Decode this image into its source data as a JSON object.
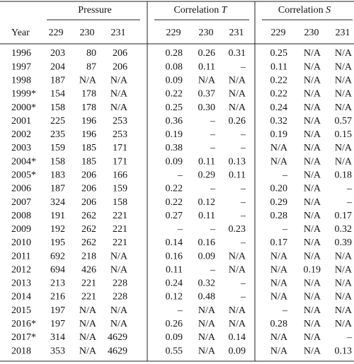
{
  "table": {
    "header": {
      "year": "Year",
      "groups": [
        {
          "label": "Pressure"
        },
        {
          "label": "Correlation",
          "symbol": "T"
        },
        {
          "label": "Correlation",
          "symbol": "S"
        }
      ],
      "columns": [
        "229",
        "230",
        "231",
        "229",
        "230",
        "231",
        "229",
        "230",
        "231"
      ]
    },
    "rows": [
      {
        "year": "1996",
        "cells": [
          "203",
          "80",
          "206",
          "0.28",
          "0.26",
          "0.31",
          "0.25",
          "N/A",
          "N/A"
        ]
      },
      {
        "year": "1997",
        "cells": [
          "204",
          "87",
          "206",
          "0.08",
          "0.11",
          "–",
          "0.11",
          "N/A",
          "N/A"
        ]
      },
      {
        "year": "1998",
        "cells": [
          "187",
          "N/A",
          "N/A",
          "0.09",
          "N/A",
          "N/A",
          "0.22",
          "N/A",
          "N/A"
        ]
      },
      {
        "year": "1999*",
        "cells": [
          "154",
          "178",
          "N/A",
          "0.22",
          "0.37",
          "N/A",
          "0.22",
          "N/A",
          "N/A"
        ]
      },
      {
        "year": "2000*",
        "cells": [
          "158",
          "178",
          "N/A",
          "0.25",
          "0.30",
          "N/A",
          "0.24",
          "N/A",
          "N/A"
        ]
      },
      {
        "year": "2001",
        "cells": [
          "225",
          "196",
          "253",
          "0.36",
          "–",
          "0.26",
          "0.32",
          "N/A",
          "0.57"
        ]
      },
      {
        "year": "2002",
        "cells": [
          "235",
          "196",
          "253",
          "0.19",
          "–",
          "–",
          "0.19",
          "N/A",
          "0.15"
        ]
      },
      {
        "year": "2003",
        "cells": [
          "159",
          "185",
          "171",
          "0.38",
          "–",
          "–",
          "N/A",
          "N/A",
          "N/A"
        ]
      },
      {
        "year": "2004*",
        "cells": [
          "158",
          "185",
          "171",
          "0.09",
          "0.11",
          "0.13",
          "N/A",
          "N/A",
          "N/A"
        ]
      },
      {
        "year": "2005*",
        "cells": [
          "183",
          "206",
          "166",
          "–",
          "0.29",
          "0.11",
          "–",
          "N/A",
          "0.18"
        ]
      },
      {
        "year": "2006",
        "cells": [
          "187",
          "206",
          "159",
          "0.22",
          "–",
          "–",
          "0.20",
          "N/A",
          "–"
        ]
      },
      {
        "year": "2007",
        "cells": [
          "324",
          "206",
          "158",
          "0.22",
          "0.12",
          "–",
          "0.29",
          "N/A",
          "–"
        ]
      },
      {
        "year": "2008",
        "cells": [
          "191",
          "262",
          "221",
          "0.27",
          "0.11",
          "–",
          "0.28",
          "N/A",
          "0.17"
        ]
      },
      {
        "year": "2009",
        "cells": [
          "192",
          "262",
          "221",
          "–",
          "–",
          "0.23",
          "–",
          "N/A",
          "0.32"
        ]
      },
      {
        "year": "2010",
        "cells": [
          "195",
          "262",
          "221",
          "0.14",
          "0.16",
          "–",
          "0.17",
          "N/A",
          "0.39"
        ]
      },
      {
        "year": "2011",
        "cells": [
          "692",
          "218",
          "N/A",
          "0.16",
          "0.09",
          "N/A",
          "N/A",
          "N/A",
          "N/A"
        ]
      },
      {
        "year": "2012",
        "cells": [
          "694",
          "426",
          "N/A",
          "0.11",
          "–",
          "N/A",
          "N/A",
          "0.19",
          "N/A"
        ]
      },
      {
        "year": "2013",
        "cells": [
          "213",
          "221",
          "228",
          "0.24",
          "0.32",
          "–",
          "N/A",
          "N/A",
          "N/A"
        ]
      },
      {
        "year": "2014",
        "cells": [
          "216",
          "221",
          "228",
          "0.12",
          "0.48",
          "–",
          "N/A",
          "N/A",
          "N/A"
        ]
      },
      {
        "year": "2015",
        "cells": [
          "197",
          "N/A",
          "N/A",
          "–",
          "N/A",
          "N/A",
          "–",
          "N/A",
          "N/A"
        ]
      },
      {
        "year": "2016*",
        "cells": [
          "197",
          "N/A",
          "N/A",
          "0.26",
          "N/A",
          "N/A",
          "0.28",
          "N/A",
          "N/A"
        ]
      },
      {
        "year": "2017*",
        "cells": [
          "314",
          "N/A",
          "4629",
          "0.09",
          "N/A",
          "0.14",
          "N/A",
          "N/A",
          "–"
        ]
      },
      {
        "year": "2018",
        "cells": [
          "353",
          "N/A",
          "4629",
          "0.55",
          "N/A",
          "0.09",
          "N/A",
          "N/A",
          "0.13"
        ]
      }
    ]
  }
}
